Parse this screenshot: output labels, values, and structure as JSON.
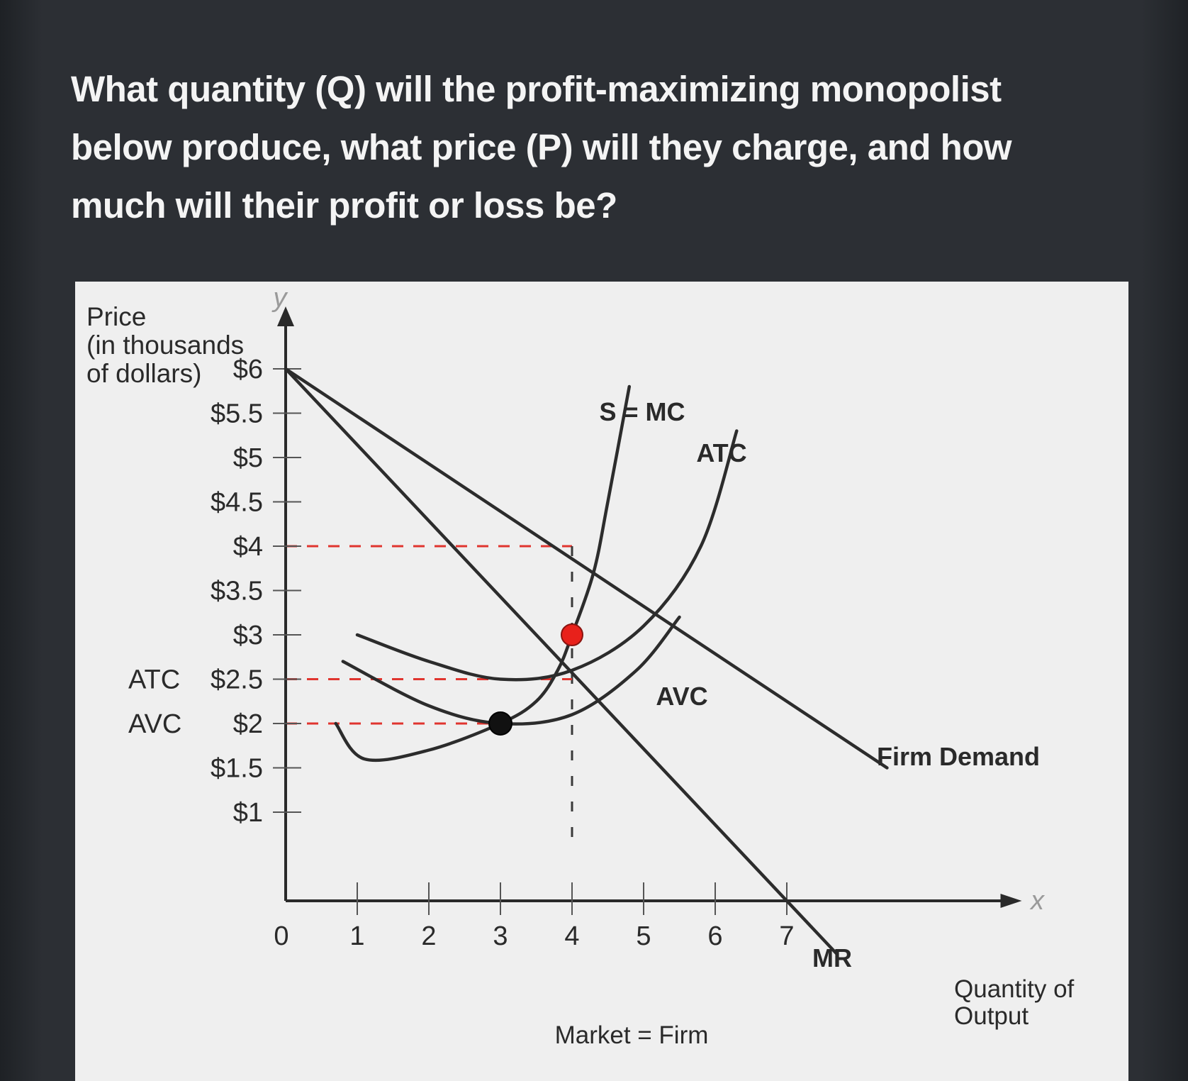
{
  "question": "What quantity (Q) will the profit-maximizing monopolist below produce, what price (P) will they charge, and how much will their profit or loss be?",
  "colors": {
    "background": "#2c2f34",
    "panel": "#efefef",
    "curve": "#2c2c2c",
    "dash": "#e0352f",
    "red_point": "#e8211b",
    "black_point": "#111111"
  },
  "chart_data": {
    "type": "line",
    "ylabel": "Price (in thousands of dollars)",
    "ylabel_lines": [
      "Price",
      "(in thousands",
      "of dollars)"
    ],
    "y_axis_letter": "y",
    "x_axis_letter": "x",
    "xlabel_lines": [
      "Quantity of",
      "Output"
    ],
    "bottom_label": "Market = Firm",
    "origin_label": "0",
    "x_ticks": [
      1,
      2,
      3,
      4,
      5,
      6,
      7
    ],
    "x_tick_labels": [
      "1",
      "2",
      "3",
      "4",
      "5",
      "6",
      "7"
    ],
    "y_ticks": [
      6,
      5.5,
      5,
      4.5,
      4,
      3.5,
      3,
      2.5,
      2,
      1.5,
      1
    ],
    "y_tick_labels": [
      "$6",
      "$5.5",
      "$5",
      "$4.5",
      "$4",
      "$3.5",
      "$3",
      "$2.5",
      "$2",
      "$1.5",
      "$1"
    ],
    "y_side_labels": [
      {
        "y": 2.5,
        "text": "ATC"
      },
      {
        "y": 2,
        "text": "AVC"
      }
    ],
    "xlim": [
      0,
      10.5
    ],
    "ylim": [
      0,
      6.8
    ],
    "series": [
      {
        "name": "Firm Demand",
        "x": [
          0,
          8.4
        ],
        "y": [
          6,
          1.5
        ]
      },
      {
        "name": "MR",
        "x": [
          0,
          7.7
        ],
        "y": [
          6,
          -0.6
        ]
      },
      {
        "name": "S = MC",
        "x": [
          0.7,
          1.1,
          2.0,
          3.0,
          3.5,
          3.8,
          4.0,
          4.3,
          4.5,
          4.8
        ],
        "y": [
          2.0,
          1.6,
          1.7,
          2.0,
          2.25,
          2.6,
          3.0,
          3.7,
          4.5,
          5.8
        ]
      },
      {
        "name": "ATC",
        "x": [
          1.0,
          2.0,
          3.0,
          4.0,
          5.0,
          5.8,
          6.3
        ],
        "y": [
          3.0,
          2.7,
          2.5,
          2.6,
          3.1,
          4.0,
          5.3
        ]
      },
      {
        "name": "AVC",
        "x": [
          0.8,
          2.0,
          3.0,
          4.0,
          4.9,
          5.5
        ],
        "y": [
          2.7,
          2.2,
          2.0,
          2.1,
          2.6,
          3.2
        ]
      }
    ],
    "points": [
      {
        "x": 4,
        "y": 3,
        "color": "red"
      },
      {
        "x": 3,
        "y": 2,
        "color": "black"
      }
    ],
    "dashed_lines": [
      {
        "from": [
          0,
          4
        ],
        "to": [
          4,
          4
        ]
      },
      {
        "from": [
          4,
          4
        ],
        "to": [
          4,
          0.6
        ]
      },
      {
        "from": [
          0,
          2.5
        ],
        "to": [
          4,
          2.5
        ]
      },
      {
        "from": [
          0,
          2
        ],
        "to": [
          3,
          2
        ]
      }
    ],
    "curve_labels": [
      {
        "text": "S = MC"
      },
      {
        "text": "ATC"
      },
      {
        "text": "AVC"
      },
      {
        "text": "Firm Demand"
      },
      {
        "text": "MR"
      }
    ],
    "legend": "none",
    "grid": false
  }
}
